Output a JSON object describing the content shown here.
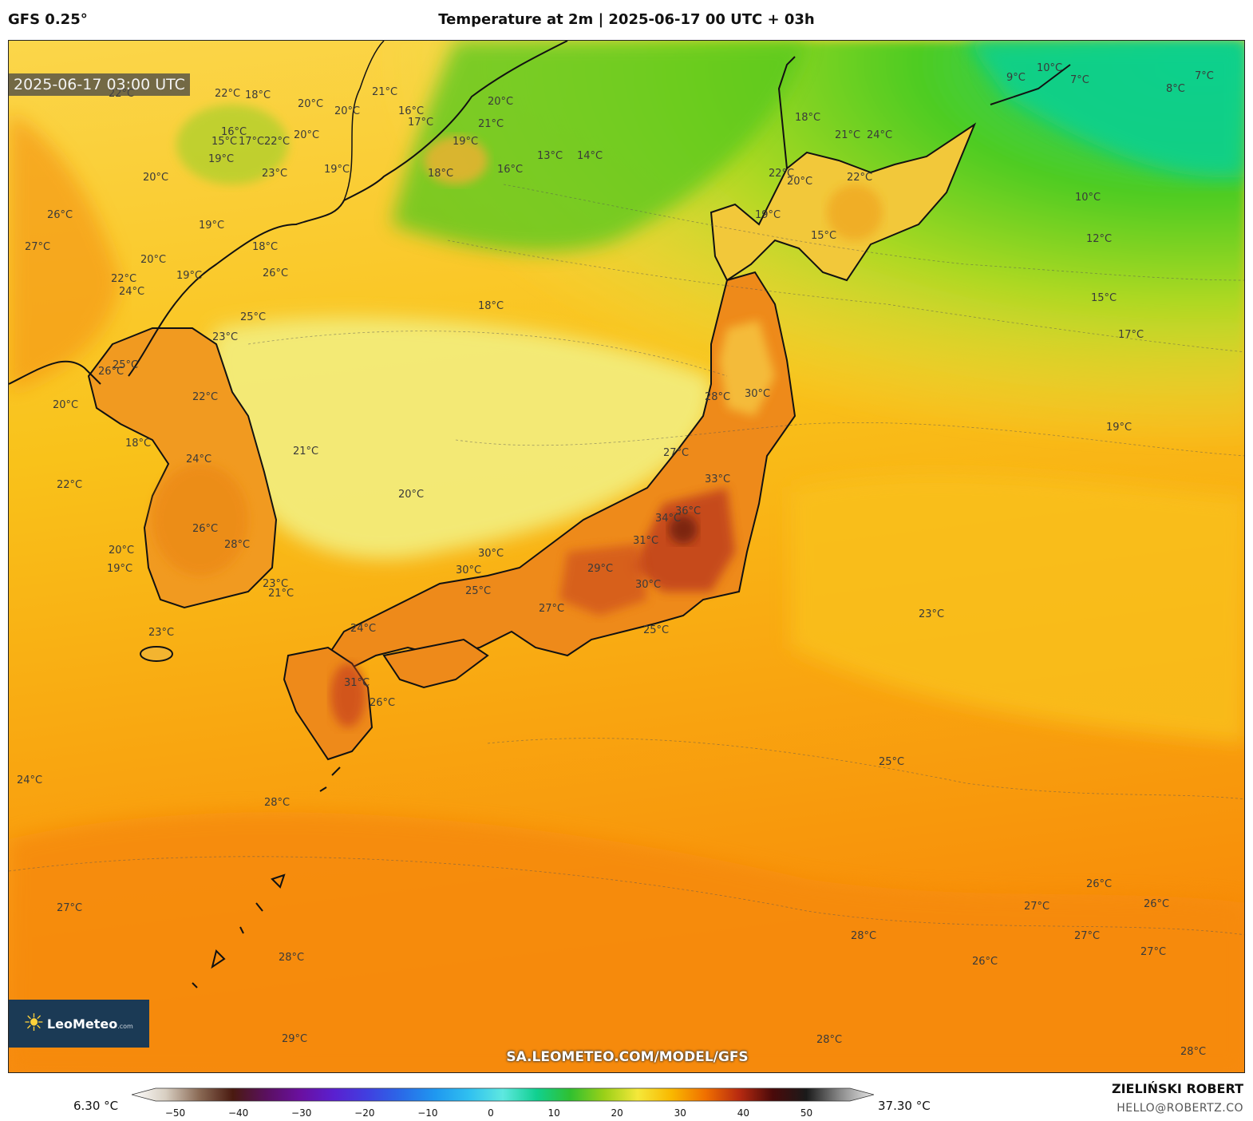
{
  "header": {
    "model": "GFS 0.25°",
    "title": "Temperature at 2m | 2025-06-17 00 UTC + 03h"
  },
  "map": {
    "valid_time": "2025-06-17 03:00 UTC",
    "logo": {
      "name": "LeoMeteo",
      "suffix": ".com"
    },
    "source_url": "SA.LEOMETEO.COM/MODEL/GFS",
    "isotherm_labels": [
      "22°C",
      "22°C",
      "18°C",
      "20°C",
      "20°C",
      "21°C",
      "16°C",
      "17°C",
      "20°C",
      "21°C",
      "19°C",
      "15°C",
      "16°C",
      "17°C",
      "22°C",
      "20°C",
      "19°C",
      "20°C",
      "19°C",
      "23°C",
      "18°C",
      "16°C",
      "13°C",
      "14°C",
      "10°C",
      "9°C",
      "7°C",
      "8°C",
      "7°C",
      "18°C",
      "21°C",
      "24°C",
      "22°C",
      "22°C",
      "20°C",
      "19°C",
      "15°C",
      "10°C",
      "12°C",
      "15°C",
      "17°C",
      "19°C",
      "26°C",
      "27°C",
      "19°C",
      "18°C",
      "20°C",
      "19°C",
      "22°C",
      "24°C",
      "26°C",
      "25°C",
      "23°C",
      "18°C",
      "25°C",
      "26°C",
      "22°C",
      "20°C",
      "24°C",
      "22°C",
      "21°C",
      "18°C",
      "28°C",
      "30°C",
      "27°C",
      "33°C",
      "36°C",
      "34°C",
      "31°C",
      "29°C",
      "30°C",
      "20°C",
      "26°C",
      "28°C",
      "20°C",
      "19°C",
      "23°C",
      "21°C",
      "30°C",
      "30°C",
      "27°C",
      "25°C",
      "25°C",
      "23°C",
      "24°C",
      "31°C",
      "26°C",
      "23°C",
      "24°C",
      "28°C",
      "25°C",
      "27°C",
      "28°C",
      "26°C",
      "27°C",
      "26°C",
      "27°C",
      "27°C",
      "28°C",
      "26°C",
      "29°C",
      "28°C",
      "28°C"
    ]
  },
  "colorbar": {
    "min_label": "6.30 °C",
    "max_label": "37.30 °C",
    "ticks": [
      "−50",
      "−40",
      "−30",
      "−20",
      "−10",
      "0",
      "10",
      "20",
      "30",
      "40",
      "50"
    ],
    "range": [
      -55,
      55
    ],
    "stops": [
      {
        "v": -55,
        "c": "#ffffff"
      },
      {
        "v": -50,
        "c": "#d8cfc2"
      },
      {
        "v": -45,
        "c": "#8a6a55"
      },
      {
        "v": -40,
        "c": "#4a1a10"
      },
      {
        "v": -35,
        "c": "#5a1060"
      },
      {
        "v": -30,
        "c": "#6a10a0"
      },
      {
        "v": -25,
        "c": "#5a20d0"
      },
      {
        "v": -20,
        "c": "#4040e0"
      },
      {
        "v": -15,
        "c": "#2a6ae8"
      },
      {
        "v": -10,
        "c": "#1f98f0"
      },
      {
        "v": -5,
        "c": "#30c0f0"
      },
      {
        "v": 0,
        "c": "#5ee8e0"
      },
      {
        "v": 5,
        "c": "#10d090"
      },
      {
        "v": 10,
        "c": "#30c030"
      },
      {
        "v": 15,
        "c": "#9ad018"
      },
      {
        "v": 20,
        "c": "#f5e83a"
      },
      {
        "v": 25,
        "c": "#f9b800"
      },
      {
        "v": 30,
        "c": "#f07000"
      },
      {
        "v": 35,
        "c": "#b82a10"
      },
      {
        "v": 40,
        "c": "#4a0a0a"
      },
      {
        "v": 45,
        "c": "#1a1a1a"
      },
      {
        "v": 50,
        "c": "#8a8a8a"
      },
      {
        "v": 55,
        "c": "#e8e8e8"
      }
    ]
  },
  "credits": {
    "author": "ZIELIŃSKI ROBERT",
    "email": "HELLO@ROBERTZ.CO"
  }
}
